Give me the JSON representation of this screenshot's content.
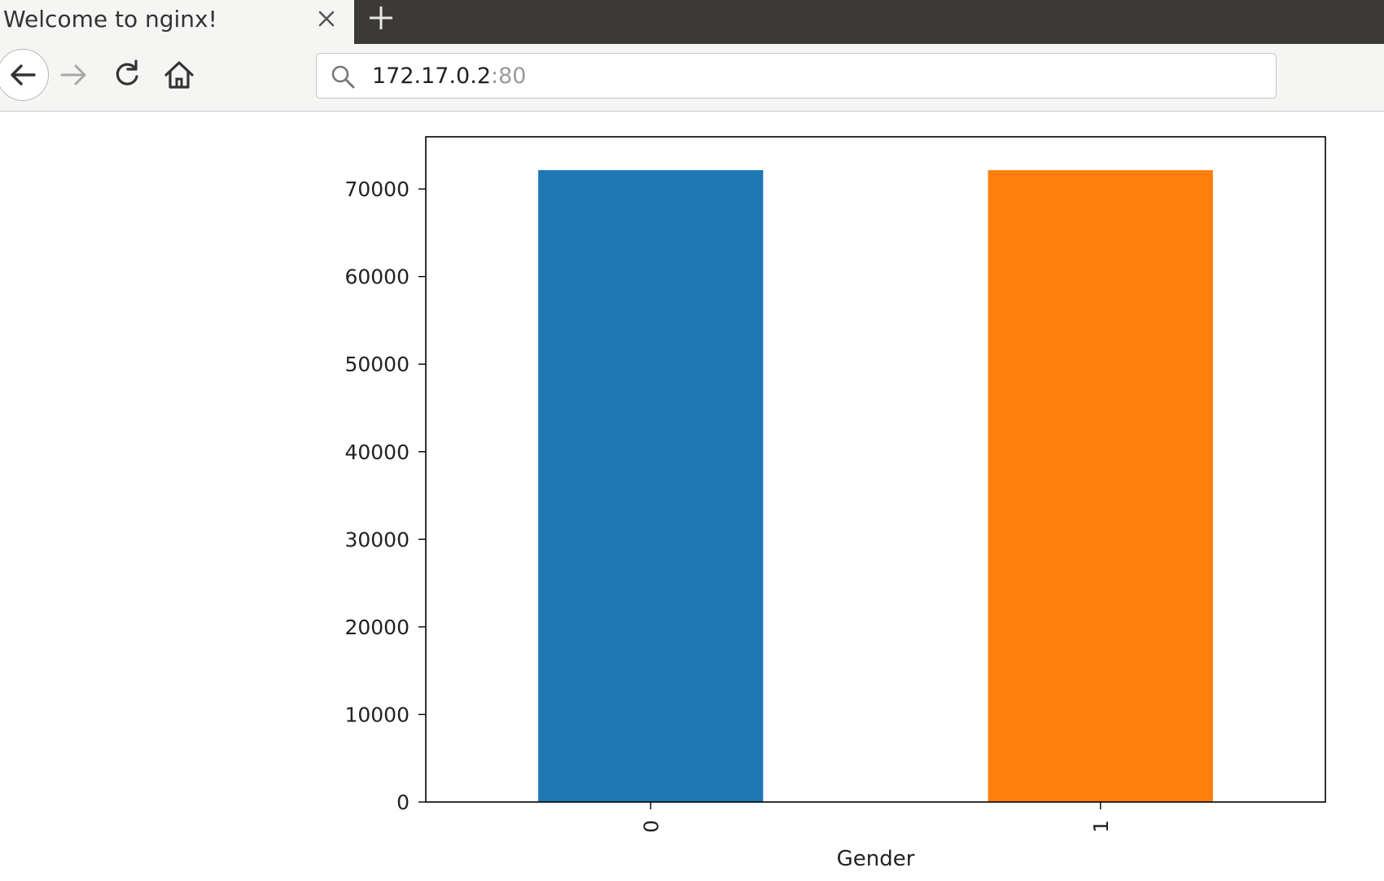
{
  "browser": {
    "tab_title": "Welcome to nginx!",
    "url_host": "172.17.0.2",
    "url_port": ":80"
  },
  "chart_data": {
    "type": "bar",
    "categories": [
      "0",
      "1"
    ],
    "values": [
      72150,
      72150
    ],
    "colors": [
      "#1f77b4",
      "#ff7f0e"
    ],
    "xlabel": "Gender",
    "ylabel": "",
    "yticks": [
      0,
      10000,
      20000,
      30000,
      40000,
      50000,
      60000,
      70000
    ],
    "ylim": [
      0,
      75960
    ],
    "xtick_rotation": "vertical",
    "grid": false,
    "legend": "none"
  }
}
